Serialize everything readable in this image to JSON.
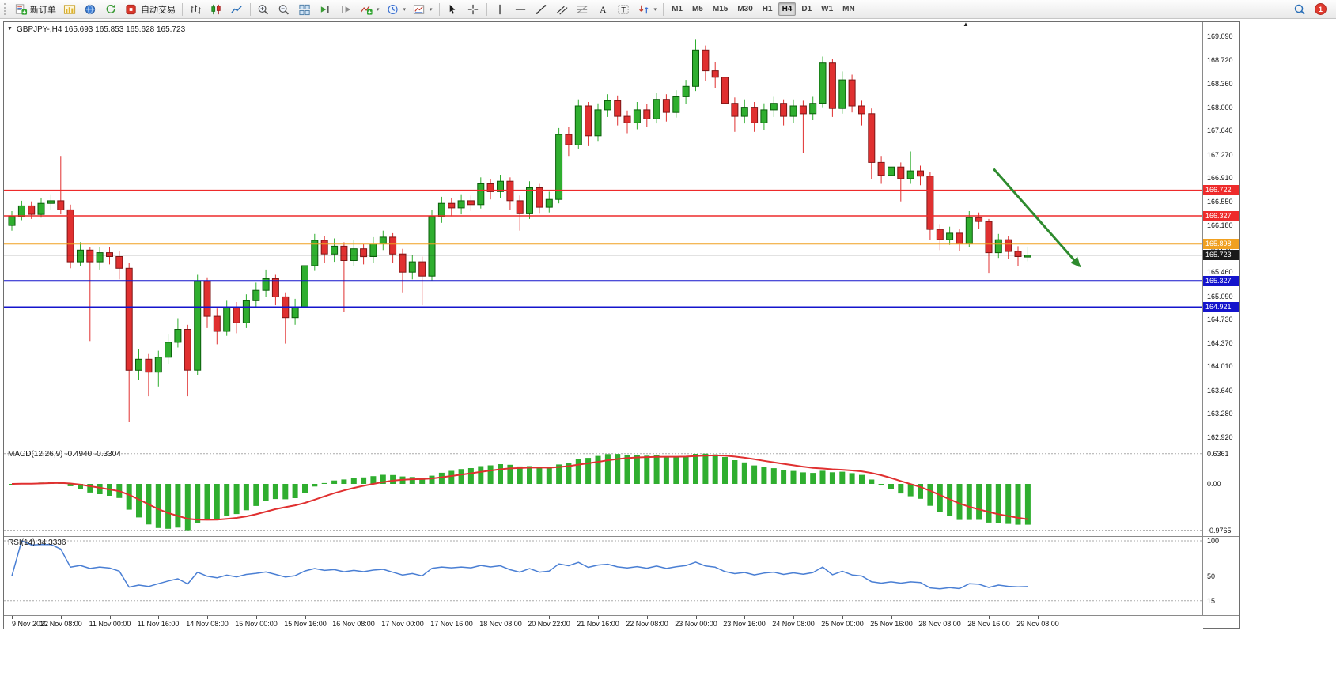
{
  "toolbar": {
    "new_order_label": "新订单",
    "autotrading_label": "自动交易",
    "timeframes": [
      "M1",
      "M5",
      "M15",
      "M30",
      "H1",
      "H4",
      "D1",
      "W1",
      "MN"
    ],
    "active_timeframe": "H4",
    "notification_count": "1"
  },
  "chart_data": {
    "type": "candlestick",
    "symbol": "GBPJPY-",
    "period": "H4",
    "title": "GBPJPY-,H4",
    "ohlc_display": "165.693 165.853 165.628 165.723",
    "last_candle": {
      "open": 165.693,
      "high": 165.853,
      "low": 165.628,
      "close": 165.723
    },
    "up_color": "#2fae2f",
    "down_color": "#e03030",
    "price_axis": {
      "min": 162.76,
      "max": 169.31,
      "ticks": [
        "169.090",
        "168.720",
        "168.360",
        "168.000",
        "167.640",
        "167.270",
        "166.910",
        "166.550",
        "166.180",
        "165.820",
        "165.460",
        "165.090",
        "164.730",
        "164.370",
        "164.010",
        "163.640",
        "163.280",
        "162.920"
      ]
    },
    "time_axis": [
      "9 Nov 2022",
      "10 Nov 08:00",
      "11 Nov 00:00",
      "11 Nov 16:00",
      "14 Nov 08:00",
      "15 Nov 00:00",
      "15 Nov 16:00",
      "16 Nov 08:00",
      "17 Nov 00:00",
      "17 Nov 16:00",
      "18 Nov 08:00",
      "20 Nov 22:00",
      "21 Nov 16:00",
      "22 Nov 08:00",
      "23 Nov 00:00",
      "23 Nov 16:00",
      "24 Nov 08:00",
      "25 Nov 00:00",
      "25 Nov 16:00",
      "28 Nov 08:00",
      "28 Nov 16:00",
      "29 Nov 08:00"
    ],
    "horizontal_lines": [
      {
        "value": 166.722,
        "label": "166.722",
        "color": "#ee2b2b",
        "width": 1.4
      },
      {
        "value": 166.327,
        "label": "166.327",
        "color": "#ee2b2b",
        "width": 1.4
      },
      {
        "value": 165.898,
        "label": "165.898",
        "color": "#f0a020",
        "width": 2
      },
      {
        "value": 165.723,
        "label": "165.723",
        "color": "#1a1a1a",
        "width": 1,
        "role": "current-price"
      },
      {
        "value": 165.327,
        "label": "165.327",
        "color": "#1414cc",
        "width": 2
      },
      {
        "value": 164.921,
        "label": "164.921",
        "color": "#1414cc",
        "width": 2
      }
    ],
    "trend_arrow": {
      "from_index": 100.5,
      "from_price": 167.05,
      "to_index": 109.3,
      "to_price": 165.55,
      "color": "#2e8b2e"
    },
    "candles": [
      [
        166.18,
        166.4,
        166.1,
        166.32
      ],
      [
        166.32,
        166.56,
        166.26,
        166.48
      ],
      [
        166.48,
        166.55,
        166.28,
        166.35
      ],
      [
        166.35,
        166.6,
        166.3,
        166.52
      ],
      [
        166.52,
        166.66,
        166.42,
        166.56
      ],
      [
        166.56,
        167.25,
        166.35,
        166.42
      ],
      [
        166.42,
        166.5,
        165.52,
        165.62
      ],
      [
        165.62,
        165.92,
        165.55,
        165.8
      ],
      [
        165.8,
        165.85,
        164.4,
        165.62
      ],
      [
        165.62,
        165.85,
        165.5,
        165.76
      ],
      [
        165.76,
        165.84,
        165.58,
        165.7
      ],
      [
        165.7,
        165.78,
        165.35,
        165.52
      ],
      [
        165.52,
        165.6,
        163.15,
        163.95
      ],
      [
        163.95,
        164.28,
        163.8,
        164.12
      ],
      [
        164.12,
        164.2,
        163.55,
        163.92
      ],
      [
        163.92,
        164.25,
        163.7,
        164.15
      ],
      [
        164.15,
        164.5,
        164.05,
        164.38
      ],
      [
        164.38,
        164.75,
        164.3,
        164.58
      ],
      [
        164.58,
        164.65,
        163.55,
        163.95
      ],
      [
        163.95,
        165.42,
        163.88,
        165.32
      ],
      [
        165.32,
        165.38,
        164.6,
        164.78
      ],
      [
        164.78,
        164.9,
        164.35,
        164.55
      ],
      [
        164.55,
        165.02,
        164.48,
        164.92
      ],
      [
        164.92,
        165.0,
        164.52,
        164.68
      ],
      [
        164.68,
        165.12,
        164.6,
        165.02
      ],
      [
        165.02,
        165.3,
        164.92,
        165.18
      ],
      [
        165.18,
        165.5,
        165.08,
        165.36
      ],
      [
        165.36,
        165.42,
        164.95,
        165.08
      ],
      [
        165.08,
        165.15,
        164.36,
        164.76
      ],
      [
        164.76,
        165.05,
        164.65,
        164.92
      ],
      [
        164.92,
        165.66,
        164.85,
        165.56
      ],
      [
        165.56,
        166.05,
        165.48,
        165.95
      ],
      [
        165.95,
        166.02,
        165.6,
        165.74
      ],
      [
        165.74,
        165.98,
        165.62,
        165.86
      ],
      [
        165.86,
        165.92,
        164.85,
        165.64
      ],
      [
        165.64,
        165.95,
        165.55,
        165.82
      ],
      [
        165.82,
        165.9,
        165.58,
        165.7
      ],
      [
        165.7,
        166.0,
        165.6,
        165.9
      ],
      [
        165.9,
        166.1,
        165.8,
        166.0
      ],
      [
        166.0,
        166.06,
        165.6,
        165.74
      ],
      [
        165.74,
        165.82,
        165.15,
        165.46
      ],
      [
        165.46,
        165.72,
        165.35,
        165.62
      ],
      [
        165.62,
        165.7,
        164.95,
        165.4
      ],
      [
        165.4,
        166.42,
        165.32,
        166.32
      ],
      [
        166.32,
        166.62,
        166.22,
        166.52
      ],
      [
        166.52,
        166.6,
        166.32,
        166.45
      ],
      [
        166.45,
        166.66,
        166.35,
        166.56
      ],
      [
        166.56,
        166.64,
        166.4,
        166.5
      ],
      [
        166.5,
        166.92,
        166.44,
        166.82
      ],
      [
        166.82,
        166.9,
        166.58,
        166.7
      ],
      [
        166.7,
        166.96,
        166.6,
        166.86
      ],
      [
        166.86,
        166.92,
        166.42,
        166.56
      ],
      [
        166.56,
        166.64,
        166.1,
        166.36
      ],
      [
        166.36,
        166.86,
        166.28,
        166.76
      ],
      [
        166.76,
        166.82,
        166.36,
        166.46
      ],
      [
        166.46,
        166.7,
        166.38,
        166.58
      ],
      [
        166.58,
        167.68,
        166.52,
        167.58
      ],
      [
        167.58,
        167.7,
        167.25,
        167.42
      ],
      [
        167.42,
        168.12,
        167.35,
        168.02
      ],
      [
        168.02,
        168.08,
        167.4,
        167.56
      ],
      [
        167.56,
        168.06,
        167.48,
        167.96
      ],
      [
        167.96,
        168.2,
        167.85,
        168.1
      ],
      [
        168.1,
        168.18,
        167.72,
        167.86
      ],
      [
        167.86,
        167.95,
        167.6,
        167.76
      ],
      [
        167.76,
        168.08,
        167.66,
        167.96
      ],
      [
        167.96,
        168.05,
        167.7,
        167.82
      ],
      [
        167.82,
        168.22,
        167.75,
        168.12
      ],
      [
        168.12,
        168.2,
        167.78,
        167.92
      ],
      [
        167.92,
        168.26,
        167.84,
        168.16
      ],
      [
        168.16,
        168.42,
        168.05,
        168.32
      ],
      [
        168.32,
        169.05,
        168.25,
        168.88
      ],
      [
        168.88,
        168.95,
        168.4,
        168.56
      ],
      [
        168.56,
        168.7,
        168.3,
        168.46
      ],
      [
        168.46,
        168.55,
        167.95,
        168.06
      ],
      [
        168.06,
        168.15,
        167.62,
        167.86
      ],
      [
        167.86,
        168.12,
        167.75,
        168.0
      ],
      [
        168.0,
        168.08,
        167.62,
        167.76
      ],
      [
        167.76,
        168.06,
        167.65,
        167.96
      ],
      [
        167.96,
        168.16,
        167.85,
        168.06
      ],
      [
        168.06,
        168.12,
        167.72,
        167.86
      ],
      [
        167.86,
        168.12,
        167.76,
        168.02
      ],
      [
        168.02,
        168.1,
        167.3,
        167.9
      ],
      [
        167.9,
        168.16,
        167.8,
        168.06
      ],
      [
        168.06,
        168.78,
        168.0,
        168.68
      ],
      [
        168.68,
        168.75,
        167.85,
        167.98
      ],
      [
        167.98,
        168.55,
        167.9,
        168.42
      ],
      [
        168.42,
        168.5,
        167.92,
        168.02
      ],
      [
        168.02,
        168.1,
        167.72,
        167.9
      ],
      [
        167.9,
        167.98,
        166.9,
        167.15
      ],
      [
        167.15,
        167.25,
        166.82,
        166.95
      ],
      [
        166.95,
        167.18,
        166.85,
        167.08
      ],
      [
        167.08,
        167.15,
        166.55,
        166.9
      ],
      [
        166.9,
        167.32,
        166.82,
        167.02
      ],
      [
        167.02,
        167.1,
        166.8,
        166.94
      ],
      [
        166.94,
        167.0,
        165.95,
        166.12
      ],
      [
        166.12,
        166.2,
        165.8,
        165.96
      ],
      [
        165.96,
        166.16,
        165.88,
        166.06
      ],
      [
        166.06,
        166.12,
        165.78,
        165.9
      ],
      [
        165.9,
        166.4,
        165.85,
        166.3
      ],
      [
        166.3,
        166.38,
        166.12,
        166.24
      ],
      [
        166.24,
        166.28,
        165.45,
        165.76
      ],
      [
        165.76,
        166.05,
        165.68,
        165.96
      ],
      [
        165.96,
        166.02,
        165.66,
        165.78
      ],
      [
        165.78,
        165.86,
        165.55,
        165.7
      ],
      [
        165.693,
        165.853,
        165.628,
        165.723
      ]
    ],
    "indicators": {
      "macd": {
        "label": "MACD(12,26,9) -0.4940 -0.3304",
        "fast": 12,
        "slow": 26,
        "signal": 9,
        "value": -0.494,
        "signal_value": -0.3304,
        "scale_ticks": [
          "0.6361",
          "0.00",
          "-0.9765"
        ],
        "histogram_color": "#2fae2f",
        "signal_color": "#e03030",
        "display_range": {
          "min": -1.1,
          "max": 0.75
        }
      },
      "rsi": {
        "label": "RSI(14) 34.3336",
        "period": 14,
        "value": 34.3336,
        "scale_ticks": [
          "100",
          "50",
          "15"
        ],
        "levels": [
          100,
          50,
          15
        ],
        "line_color": "#4a7fd4",
        "display_range": {
          "min": 0,
          "max": 100
        }
      }
    }
  }
}
